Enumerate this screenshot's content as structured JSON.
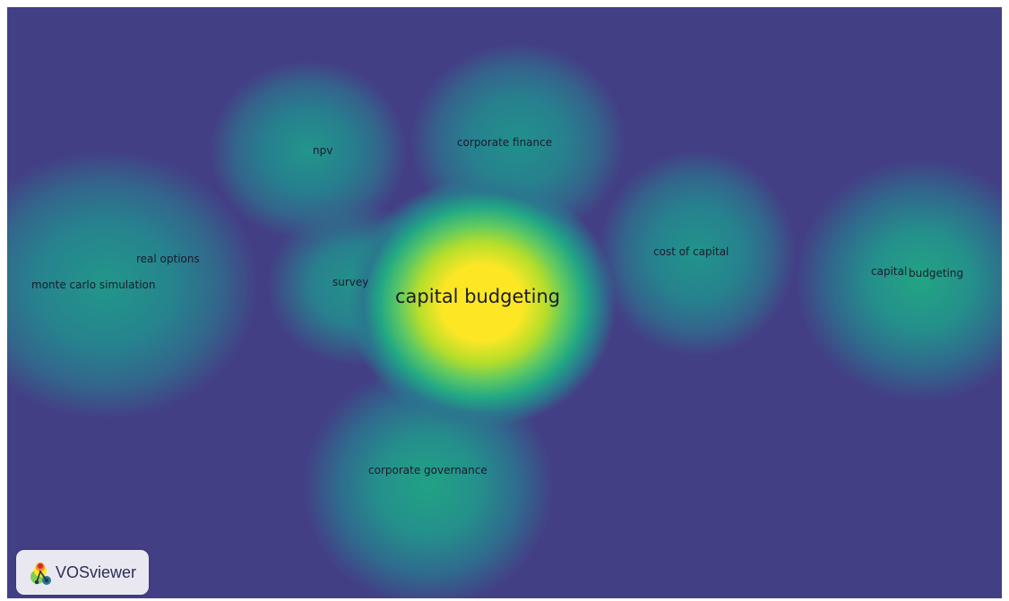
{
  "app": {
    "brand": "VOSviewer"
  },
  "view": "density visualization",
  "colors": {
    "background": "#433f85",
    "low_density": "#2a788e",
    "mid_density": "#22a884",
    "high_density": "#fde725",
    "label_color": "#1b1b2e"
  },
  "terms": [
    {
      "key": "capital-budgeting-main",
      "label": "capital budgeting"
    },
    {
      "key": "npv",
      "label": "npv"
    },
    {
      "key": "corporate-finance",
      "label": "corporate finance"
    },
    {
      "key": "cost-of-capital",
      "label": "cost of capital"
    },
    {
      "key": "real-options",
      "label": "real options"
    },
    {
      "key": "monte-carlo-simulation",
      "label": "monte carlo simulation"
    },
    {
      "key": "survey",
      "label": "survey"
    },
    {
      "key": "corporate-governance",
      "label": "corporate governance"
    },
    {
      "key": "capital-budgeting-right-1",
      "label": "capital"
    },
    {
      "key": "capital-budgeting-right-2",
      "label": "budgeting"
    }
  ]
}
